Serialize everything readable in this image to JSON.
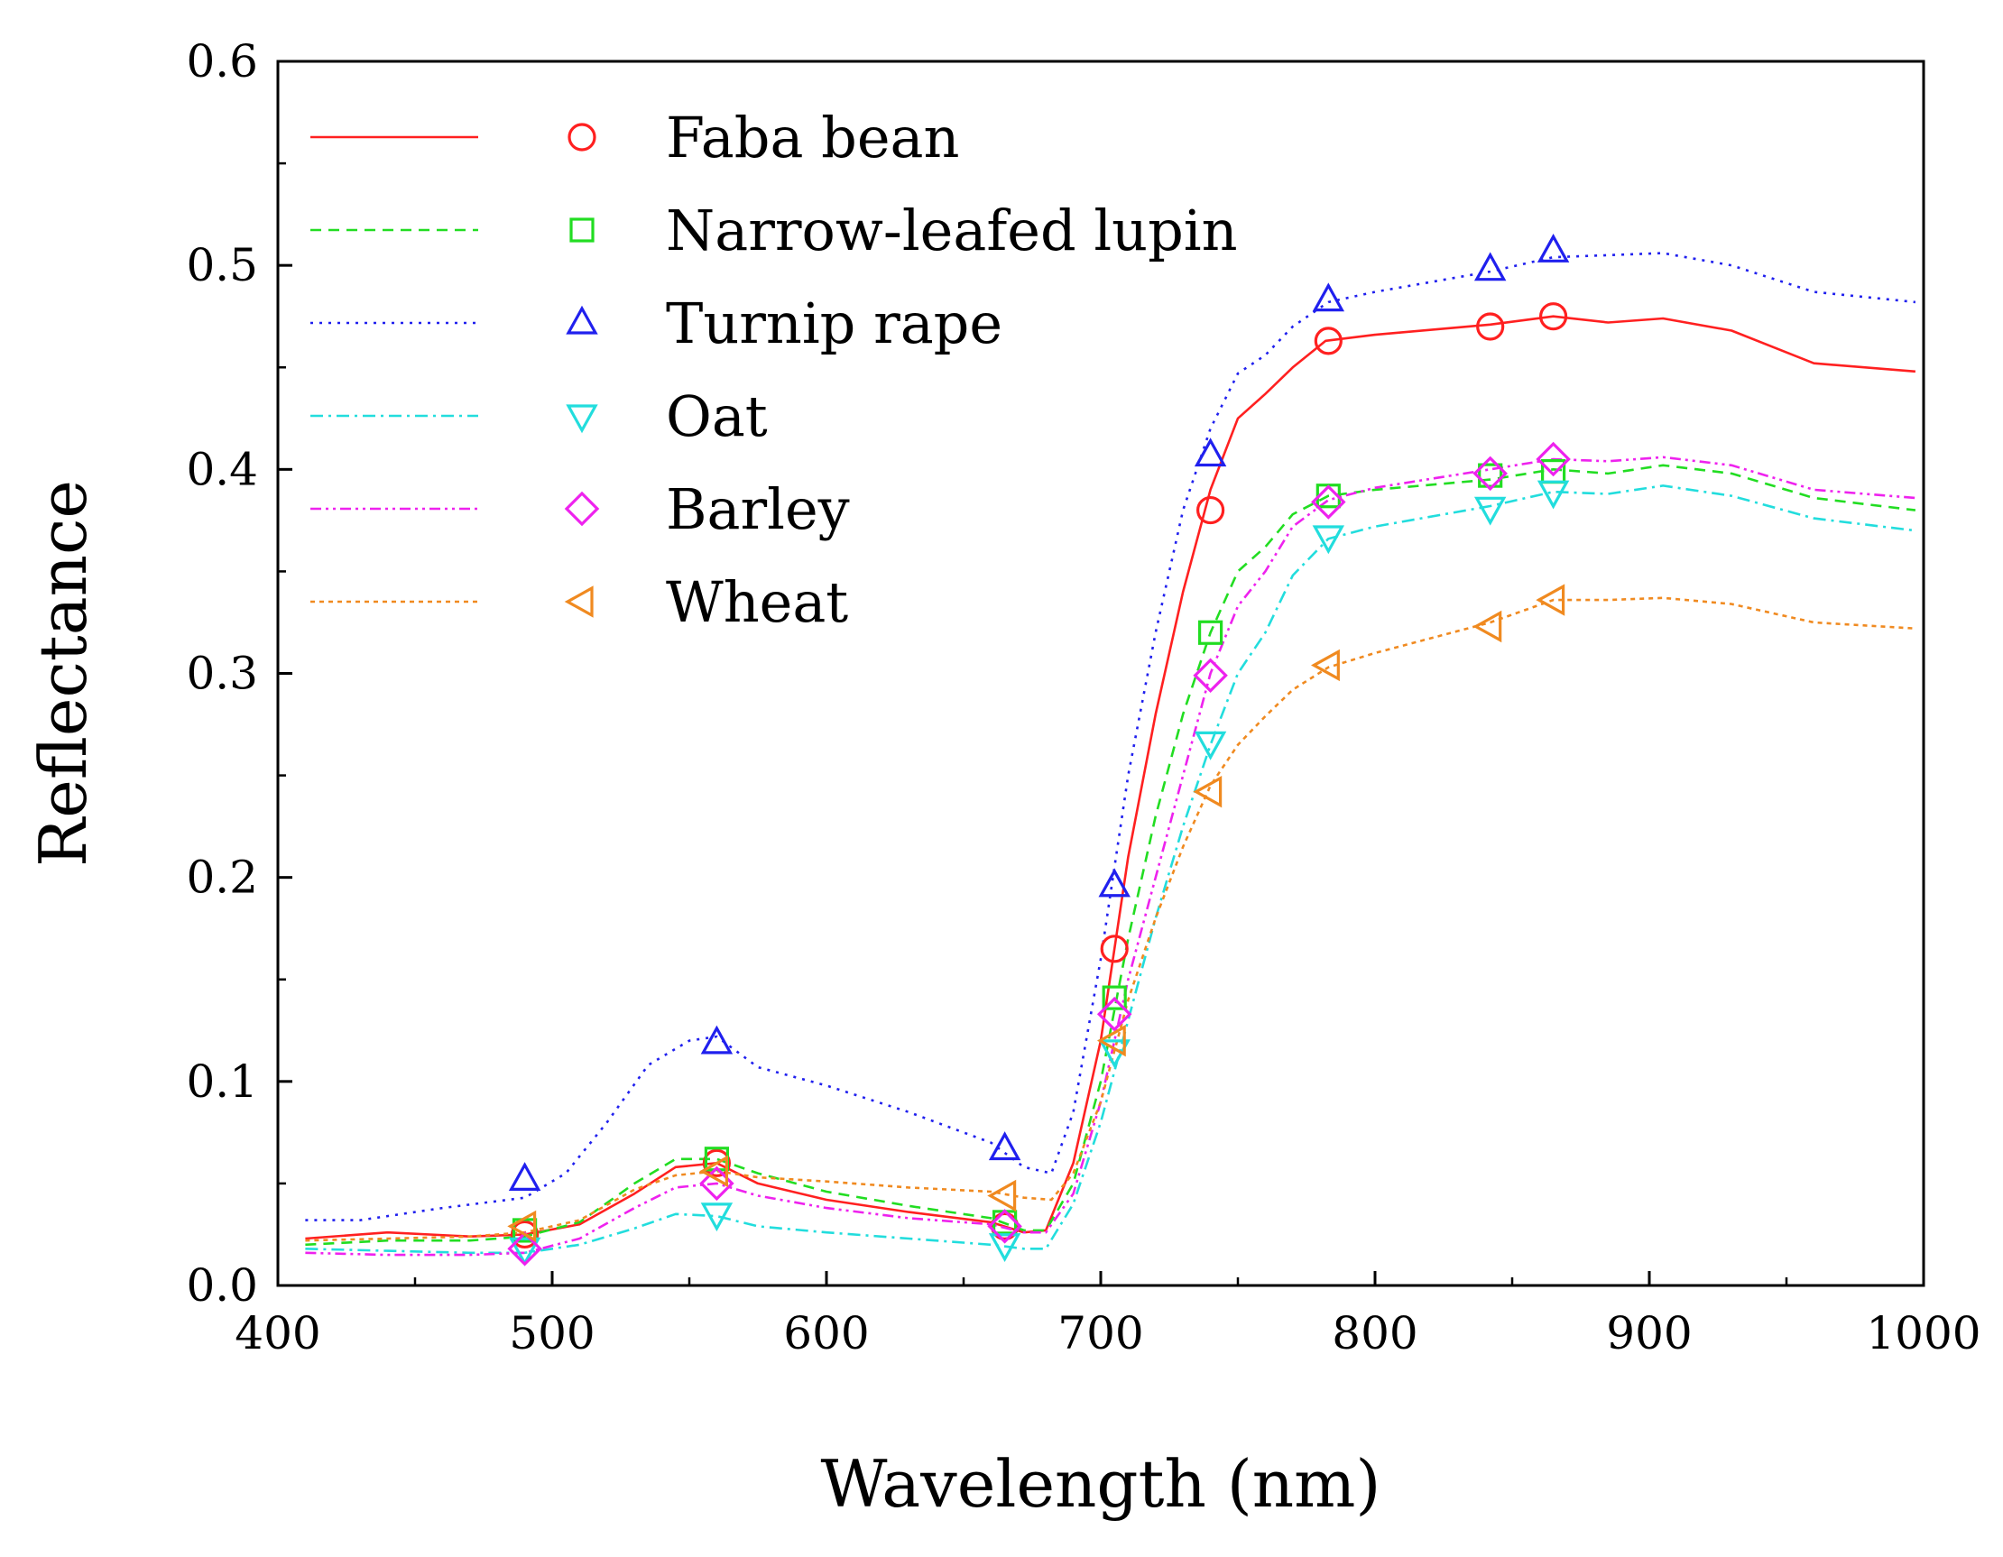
{
  "chart_data": {
    "type": "line",
    "title": "",
    "xlabel": "Wavelength (nm)",
    "ylabel": "Reflectance",
    "xlim": [
      400,
      1000
    ],
    "ylim": [
      0.0,
      0.6
    ],
    "x_ticks": [
      "400",
      "500",
      "600",
      "700",
      "800",
      "900",
      "1000"
    ],
    "y_ticks": [
      "0.0",
      "0.1",
      "0.2",
      "0.3",
      "0.4",
      "0.5",
      "0.6"
    ],
    "grid": false,
    "legend_position": "top-left",
    "series": [
      {
        "name": "Faba bean",
        "color": "#ff2020",
        "dash": "solid",
        "marker": "circle",
        "line": [
          [
            410,
            0.023
          ],
          [
            440,
            0.026
          ],
          [
            470,
            0.024
          ],
          [
            490,
            0.025
          ],
          [
            510,
            0.03
          ],
          [
            530,
            0.045
          ],
          [
            545,
            0.058
          ],
          [
            560,
            0.06
          ],
          [
            575,
            0.05
          ],
          [
            600,
            0.042
          ],
          [
            630,
            0.036
          ],
          [
            660,
            0.031
          ],
          [
            672,
            0.026
          ],
          [
            680,
            0.027
          ],
          [
            690,
            0.06
          ],
          [
            700,
            0.12
          ],
          [
            710,
            0.21
          ],
          [
            720,
            0.28
          ],
          [
            730,
            0.34
          ],
          [
            740,
            0.39
          ],
          [
            750,
            0.425
          ],
          [
            760,
            0.437
          ],
          [
            770,
            0.45
          ],
          [
            782,
            0.463
          ],
          [
            800,
            0.466
          ],
          [
            842,
            0.471
          ],
          [
            865,
            0.475
          ],
          [
            885,
            0.472
          ],
          [
            905,
            0.474
          ],
          [
            930,
            0.468
          ],
          [
            960,
            0.452
          ],
          [
            997,
            0.448
          ]
        ],
        "markers": [
          [
            490,
            0.025
          ],
          [
            560,
            0.06
          ],
          [
            665,
            0.029
          ],
          [
            705,
            0.165
          ],
          [
            740,
            0.38
          ],
          [
            783,
            0.463
          ],
          [
            842,
            0.47
          ],
          [
            865,
            0.475
          ]
        ]
      },
      {
        "name": "Narrow-leafed lupin",
        "color": "#22dd22",
        "dash": "dashed",
        "marker": "square",
        "line": [
          [
            410,
            0.02
          ],
          [
            440,
            0.022
          ],
          [
            470,
            0.022
          ],
          [
            490,
            0.024
          ],
          [
            510,
            0.031
          ],
          [
            530,
            0.05
          ],
          [
            545,
            0.062
          ],
          [
            560,
            0.062
          ],
          [
            575,
            0.055
          ],
          [
            600,
            0.046
          ],
          [
            630,
            0.039
          ],
          [
            660,
            0.033
          ],
          [
            672,
            0.027
          ],
          [
            680,
            0.027
          ],
          [
            690,
            0.05
          ],
          [
            700,
            0.1
          ],
          [
            710,
            0.17
          ],
          [
            720,
            0.23
          ],
          [
            730,
            0.28
          ],
          [
            740,
            0.32
          ],
          [
            750,
            0.35
          ],
          [
            760,
            0.362
          ],
          [
            770,
            0.378
          ],
          [
            783,
            0.387
          ],
          [
            800,
            0.39
          ],
          [
            842,
            0.395
          ],
          [
            865,
            0.4
          ],
          [
            885,
            0.398
          ],
          [
            905,
            0.402
          ],
          [
            930,
            0.398
          ],
          [
            960,
            0.386
          ],
          [
            997,
            0.38
          ]
        ],
        "markers": [
          [
            490,
            0.027
          ],
          [
            560,
            0.062
          ],
          [
            665,
            0.031
          ],
          [
            705,
            0.141
          ],
          [
            740,
            0.32
          ],
          [
            783,
            0.387
          ],
          [
            842,
            0.397
          ],
          [
            865,
            0.399
          ]
        ]
      },
      {
        "name": "Turnip rape",
        "color": "#2020ee",
        "dash": "dotted",
        "marker": "triangle-up",
        "line": [
          [
            410,
            0.032
          ],
          [
            430,
            0.032
          ],
          [
            460,
            0.038
          ],
          [
            490,
            0.043
          ],
          [
            505,
            0.055
          ],
          [
            520,
            0.08
          ],
          [
            535,
            0.108
          ],
          [
            550,
            0.12
          ],
          [
            560,
            0.122
          ],
          [
            575,
            0.107
          ],
          [
            600,
            0.098
          ],
          [
            630,
            0.085
          ],
          [
            660,
            0.07
          ],
          [
            672,
            0.058
          ],
          [
            682,
            0.055
          ],
          [
            690,
            0.085
          ],
          [
            700,
            0.16
          ],
          [
            710,
            0.25
          ],
          [
            720,
            0.32
          ],
          [
            730,
            0.38
          ],
          [
            740,
            0.42
          ],
          [
            750,
            0.447
          ],
          [
            760,
            0.456
          ],
          [
            770,
            0.47
          ],
          [
            783,
            0.482
          ],
          [
            800,
            0.487
          ],
          [
            842,
            0.497
          ],
          [
            865,
            0.504
          ],
          [
            885,
            0.505
          ],
          [
            905,
            0.506
          ],
          [
            930,
            0.5
          ],
          [
            960,
            0.487
          ],
          [
            997,
            0.482
          ]
        ],
        "markers": [
          [
            490,
            0.052
          ],
          [
            560,
            0.119
          ],
          [
            665,
            0.067
          ],
          [
            705,
            0.196
          ],
          [
            740,
            0.407
          ],
          [
            783,
            0.483
          ],
          [
            842,
            0.498
          ],
          [
            865,
            0.507
          ]
        ]
      },
      {
        "name": "Oat",
        "color": "#22dddd",
        "dash": "dashdot",
        "marker": "triangle-down",
        "line": [
          [
            410,
            0.018
          ],
          [
            440,
            0.017
          ],
          [
            470,
            0.016
          ],
          [
            490,
            0.016
          ],
          [
            510,
            0.02
          ],
          [
            530,
            0.028
          ],
          [
            545,
            0.035
          ],
          [
            560,
            0.034
          ],
          [
            575,
            0.029
          ],
          [
            600,
            0.026
          ],
          [
            630,
            0.023
          ],
          [
            660,
            0.02
          ],
          [
            672,
            0.018
          ],
          [
            680,
            0.018
          ],
          [
            690,
            0.04
          ],
          [
            700,
            0.08
          ],
          [
            710,
            0.13
          ],
          [
            720,
            0.18
          ],
          [
            730,
            0.225
          ],
          [
            740,
            0.265
          ],
          [
            750,
            0.3
          ],
          [
            760,
            0.32
          ],
          [
            770,
            0.348
          ],
          [
            783,
            0.366
          ],
          [
            800,
            0.372
          ],
          [
            842,
            0.382
          ],
          [
            865,
            0.389
          ],
          [
            885,
            0.388
          ],
          [
            905,
            0.392
          ],
          [
            930,
            0.387
          ],
          [
            960,
            0.376
          ],
          [
            997,
            0.37
          ]
        ],
        "markers": [
          [
            490,
            0.018
          ],
          [
            560,
            0.035
          ],
          [
            665,
            0.02
          ],
          [
            705,
            0.115
          ],
          [
            740,
            0.266
          ],
          [
            783,
            0.367
          ],
          [
            842,
            0.381
          ],
          [
            865,
            0.389
          ]
        ]
      },
      {
        "name": "Barley",
        "color": "#ee22ee",
        "dash": "dashdotdot",
        "marker": "diamond",
        "line": [
          [
            410,
            0.016
          ],
          [
            440,
            0.015
          ],
          [
            470,
            0.015
          ],
          [
            490,
            0.016
          ],
          [
            510,
            0.023
          ],
          [
            530,
            0.038
          ],
          [
            545,
            0.048
          ],
          [
            560,
            0.05
          ],
          [
            575,
            0.044
          ],
          [
            600,
            0.038
          ],
          [
            630,
            0.033
          ],
          [
            660,
            0.03
          ],
          [
            672,
            0.026
          ],
          [
            680,
            0.026
          ],
          [
            690,
            0.045
          ],
          [
            700,
            0.09
          ],
          [
            710,
            0.15
          ],
          [
            720,
            0.2
          ],
          [
            730,
            0.25
          ],
          [
            740,
            0.3
          ],
          [
            750,
            0.333
          ],
          [
            760,
            0.35
          ],
          [
            770,
            0.372
          ],
          [
            783,
            0.385
          ],
          [
            800,
            0.391
          ],
          [
            842,
            0.4
          ],
          [
            865,
            0.405
          ],
          [
            885,
            0.404
          ],
          [
            905,
            0.406
          ],
          [
            930,
            0.402
          ],
          [
            960,
            0.39
          ],
          [
            997,
            0.386
          ]
        ],
        "markers": [
          [
            490,
            0.018
          ],
          [
            560,
            0.05
          ],
          [
            665,
            0.029
          ],
          [
            705,
            0.133
          ],
          [
            740,
            0.299
          ],
          [
            783,
            0.384
          ],
          [
            842,
            0.398
          ],
          [
            865,
            0.405
          ]
        ]
      },
      {
        "name": "Wheat",
        "color": "#f08a20",
        "dash": "shortdot",
        "marker": "triangle-left",
        "line": [
          [
            410,
            0.022
          ],
          [
            440,
            0.023
          ],
          [
            470,
            0.024
          ],
          [
            490,
            0.026
          ],
          [
            510,
            0.032
          ],
          [
            530,
            0.047
          ],
          [
            545,
            0.054
          ],
          [
            560,
            0.056
          ],
          [
            575,
            0.053
          ],
          [
            600,
            0.051
          ],
          [
            630,
            0.048
          ],
          [
            660,
            0.046
          ],
          [
            672,
            0.043
          ],
          [
            682,
            0.042
          ],
          [
            690,
            0.055
          ],
          [
            700,
            0.09
          ],
          [
            710,
            0.14
          ],
          [
            720,
            0.18
          ],
          [
            730,
            0.215
          ],
          [
            740,
            0.245
          ],
          [
            750,
            0.265
          ],
          [
            760,
            0.279
          ],
          [
            770,
            0.292
          ],
          [
            783,
            0.303
          ],
          [
            800,
            0.31
          ],
          [
            842,
            0.325
          ],
          [
            865,
            0.336
          ],
          [
            885,
            0.336
          ],
          [
            905,
            0.337
          ],
          [
            930,
            0.334
          ],
          [
            960,
            0.325
          ],
          [
            997,
            0.322
          ]
        ],
        "markers": [
          [
            490,
            0.029
          ],
          [
            560,
            0.056
          ],
          [
            665,
            0.044
          ],
          [
            705,
            0.12
          ],
          [
            740,
            0.242
          ],
          [
            783,
            0.304
          ],
          [
            842,
            0.323
          ],
          [
            865,
            0.336
          ]
        ]
      }
    ]
  }
}
